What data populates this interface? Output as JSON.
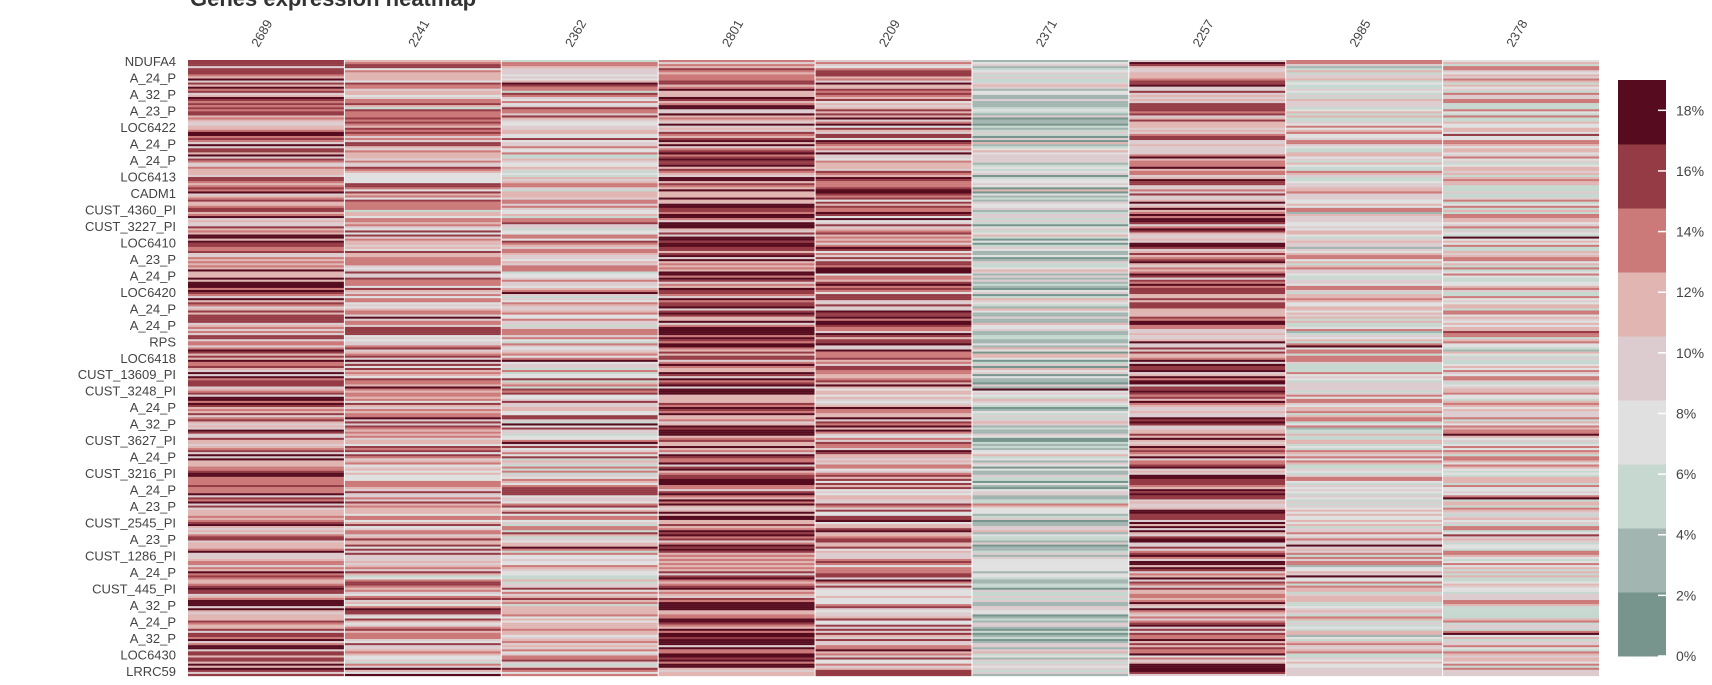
{
  "chart_data": {
    "type": "heatmap",
    "title": "Genes expression heatmap",
    "columns": [
      "2689",
      "2241",
      "2362",
      "2801",
      "2209",
      "2371",
      "2257",
      "2985",
      "2378"
    ],
    "row_labels_visible": [
      "NDUFA4",
      "A_24_P",
      "A_32_P",
      "A_23_P",
      "LOC6422",
      "A_24_P",
      "A_24_P",
      "LOC6413",
      "CADM1",
      "CUST_4360_PI",
      "CUST_3227_PI",
      "LOC6410",
      "A_23_P",
      "A_24_P",
      "LOC6420",
      "A_24_P",
      "A_24_P",
      "RPS",
      "LOC6418",
      "CUST_13609_PI",
      "CUST_3248_PI",
      "A_24_P",
      "A_32_P",
      "CUST_3627_PI",
      "A_24_P",
      "CUST_3216_PI",
      "A_24_P",
      "A_23_P",
      "CUST_2545_PI",
      "A_23_P",
      "CUST_1286_PI",
      "A_24_P",
      "CUST_445_PI",
      "A_32_P",
      "A_24_P",
      "A_32_P",
      "LOC6430",
      "LRRC59"
    ],
    "column_means_pct": [
      13.5,
      12.0,
      10.5,
      14.5,
      12.5,
      6.0,
      13.5,
      9.0,
      9.5
    ],
    "colorbar": {
      "min": 0,
      "max": 19,
      "ticks": [
        0,
        2,
        4,
        6,
        8,
        10,
        12,
        14,
        16,
        18
      ],
      "tick_labels": [
        "0%",
        "2%",
        "4%",
        "6%",
        "8%",
        "10%",
        "12%",
        "14%",
        "16%",
        "18%"
      ],
      "colors": [
        "#77958c",
        "#a3b5b0",
        "#c6d8cf",
        "#e0e0e0",
        "#ddcccf",
        "#e0b5b2",
        "#cc7979",
        "#953b45",
        "#560b1e"
      ]
    },
    "grid": false,
    "legend": "right"
  }
}
